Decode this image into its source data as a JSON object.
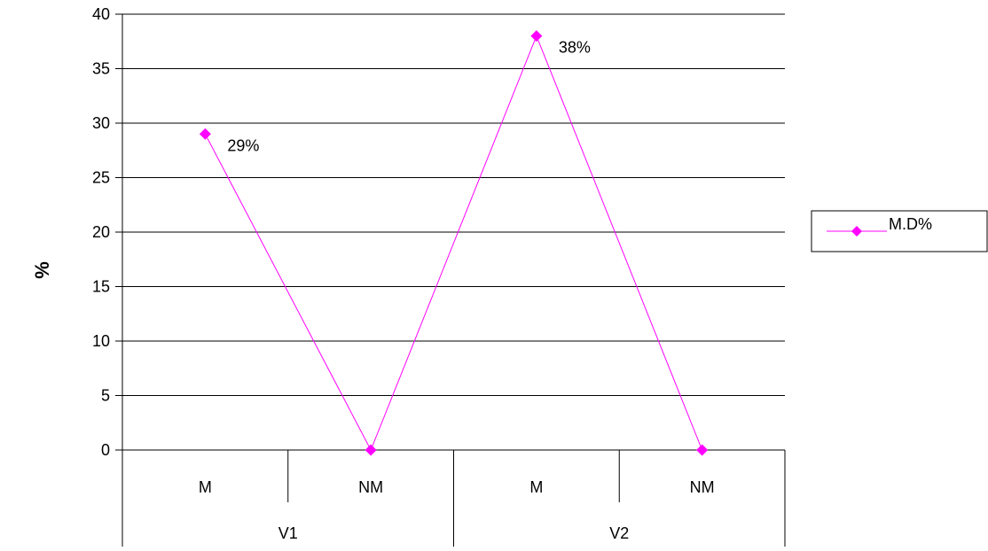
{
  "chart_data": {
    "type": "line",
    "ylabel": "%",
    "ylim": [
      0,
      40
    ],
    "ytick_step": 5,
    "grid": true,
    "categories": [
      "M",
      "NM",
      "M",
      "NM"
    ],
    "groups": [
      {
        "label": "V1",
        "span": 2
      },
      {
        "label": "V2",
        "span": 2
      }
    ],
    "series": [
      {
        "name": "M.D%",
        "color": "#ff00ff",
        "values": [
          29,
          0,
          38,
          0
        ],
        "data_labels": [
          "29%",
          "",
          "38%",
          ""
        ]
      }
    ],
    "legend_position": "right"
  }
}
